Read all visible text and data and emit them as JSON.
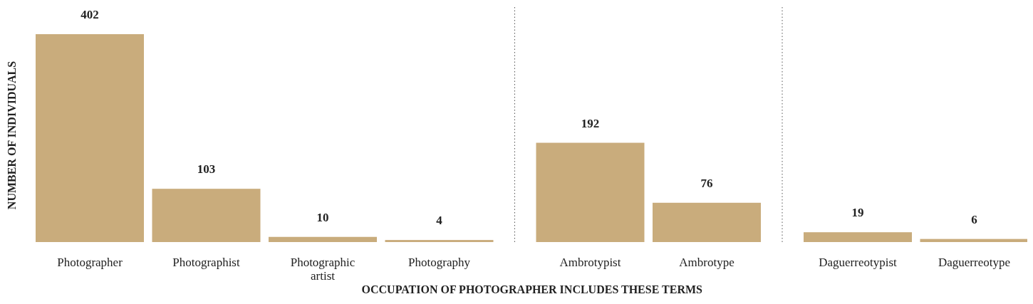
{
  "chart_data": {
    "type": "bar",
    "xlabel": "OCCUPATION OF PHOTOGRAPHER INCLUDES THESE TERMS",
    "ylabel": "NUMBER OF INDIVIDUALS",
    "categories": [
      "Photographer",
      "Photographist",
      "Photographic artist",
      "Photography",
      "Ambrotypist",
      "Ambrotype",
      "Daguerreotypist",
      "Daguerreotype"
    ],
    "values": [
      402,
      103,
      10,
      4,
      192,
      76,
      19,
      6
    ],
    "color": "#c9ac7c",
    "data_labels": true
  }
}
